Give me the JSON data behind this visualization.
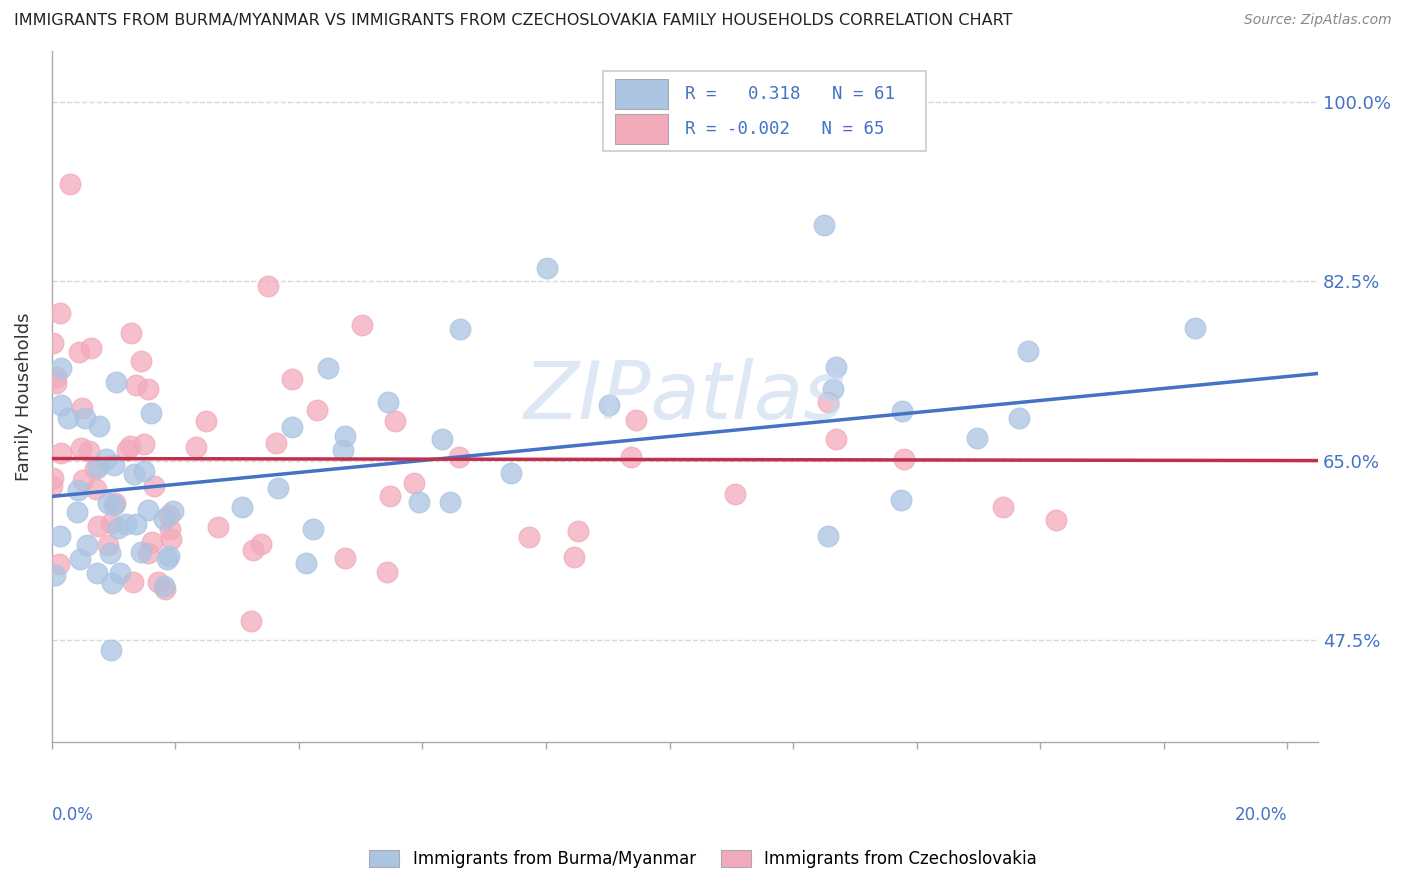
{
  "title": "IMMIGRANTS FROM BURMA/MYANMAR VS IMMIGRANTS FROM CZECHOSLOVAKIA FAMILY HOUSEHOLDS CORRELATION CHART",
  "source": "Source: ZipAtlas.com",
  "ylabel": "Family Households",
  "ytick_vals": [
    0.475,
    0.65,
    0.825,
    1.0
  ],
  "ytick_labels": [
    "47.5%",
    "65.0%",
    "82.5%",
    "100.0%"
  ],
  "ylim": [
    0.375,
    1.05
  ],
  "xlim": [
    0.0,
    0.205
  ],
  "blue_R": 0.318,
  "blue_N": 61,
  "pink_R": -0.002,
  "pink_N": 65,
  "blue_color": "#aac4e2",
  "pink_color": "#f2aabb",
  "blue_line_color": "#4472c4",
  "pink_line_color": "#c0304a",
  "background_color": "#ffffff",
  "grid_color": "#d8d8d8",
  "watermark": "ZIPatlas",
  "watermark_color": "#c8d8ee",
  "tick_color": "#4472c4",
  "blue_line_y0": 0.615,
  "blue_line_y1": 0.735,
  "pink_line_y0": 0.652,
  "pink_line_y1": 0.65,
  "xtick_count": 11,
  "legend_label_blue": "Immigrants from Burma/Myanmar",
  "legend_label_pink": "Immigrants from Czechoslovakia"
}
